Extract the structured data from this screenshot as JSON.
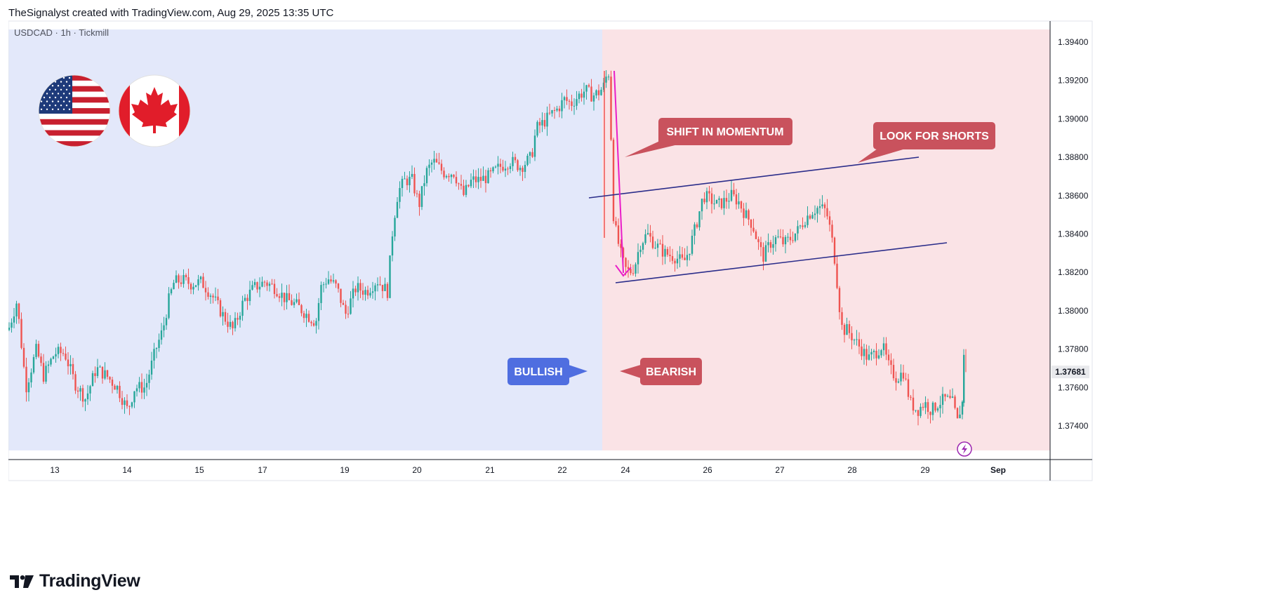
{
  "header": {
    "attribution": "TheSignalyst created with TradingView.com, Aug 29, 2025 13:35 UTC"
  },
  "symbol_label": "USDCAD · 1h · Tickmill",
  "footer": {
    "brand": "TradingView"
  },
  "colors": {
    "bullish_zone": "#e3e8fa",
    "bearish_zone": "#fae3e6",
    "candle_up": "#26a69a",
    "candle_down": "#ef5350",
    "channel_line": "#2b2d8a",
    "arrow": "#e91ec8",
    "label_bearish": "#c9525d",
    "label_bullish": "#4f6ee0"
  },
  "icons": [
    "us-flag-icon",
    "canada-flag-icon",
    "lightning-icon",
    "tradingview-logo-icon"
  ],
  "annotations": {
    "shift": "SHIFT IN MOMENTUM",
    "shorts": "LOOK FOR SHORTS",
    "bullish": "BULLISH",
    "bearish": "BEARISH"
  },
  "chart_data": {
    "type": "candlestick",
    "symbol": "USDCAD",
    "timeframe": "1h",
    "broker": "Tickmill",
    "ylim": [
      1.3728,
      1.3952
    ],
    "y_ticks": [
      "1.39400",
      "1.39200",
      "1.39000",
      "1.38800",
      "1.38600",
      "1.38400",
      "1.38200",
      "1.38000",
      "1.37800",
      "1.37600",
      "1.37400"
    ],
    "y_tick_values": [
      1.394,
      1.392,
      1.39,
      1.388,
      1.386,
      1.384,
      1.382,
      1.38,
      1.378,
      1.376,
      1.374
    ],
    "x_ticks": [
      "13",
      "14",
      "15",
      "17",
      "19",
      "20",
      "21",
      "22",
      "24",
      "26",
      "27",
      "28",
      "29",
      "Sep"
    ],
    "last_price": "1.37681",
    "last_price_value": 1.37681,
    "path": [
      [
        0,
        1.379
      ],
      [
        12,
        1.3805
      ],
      [
        25,
        1.376
      ],
      [
        40,
        1.378
      ],
      [
        50,
        1.3766
      ],
      [
        66,
        1.3778
      ],
      [
        80,
        1.3778
      ],
      [
        95,
        1.3762
      ],
      [
        110,
        1.3754
      ],
      [
        125,
        1.377
      ],
      [
        140,
        1.3766
      ],
      [
        155,
        1.376
      ],
      [
        170,
        1.3748
      ],
      [
        180,
        1.376
      ],
      [
        195,
        1.376
      ],
      [
        210,
        1.378
      ],
      [
        220,
        1.379
      ],
      [
        228,
        1.3805
      ],
      [
        236,
        1.3815
      ],
      [
        248,
        1.3816
      ],
      [
        260,
        1.3814
      ],
      [
        275,
        1.3815
      ],
      [
        290,
        1.3808
      ],
      [
        305,
        1.3798
      ],
      [
        320,
        1.379
      ],
      [
        335,
        1.3805
      ],
      [
        350,
        1.3812
      ],
      [
        365,
        1.3815
      ],
      [
        380,
        1.3812
      ],
      [
        395,
        1.3806
      ],
      [
        410,
        1.3803
      ],
      [
        425,
        1.3798
      ],
      [
        438,
        1.3794
      ],
      [
        445,
        1.3812
      ],
      [
        455,
        1.3817
      ],
      [
        468,
        1.3812
      ],
      [
        480,
        1.3798
      ],
      [
        495,
        1.3812
      ],
      [
        510,
        1.381
      ],
      [
        525,
        1.3816
      ],
      [
        540,
        1.381
      ],
      [
        548,
        1.3845
      ],
      [
        555,
        1.3862
      ],
      [
        565,
        1.3868
      ],
      [
        575,
        1.3868
      ],
      [
        585,
        1.3855
      ],
      [
        595,
        1.3872
      ],
      [
        605,
        1.3878
      ],
      [
        620,
        1.3872
      ],
      [
        635,
        1.3872
      ],
      [
        648,
        1.386
      ],
      [
        660,
        1.3868
      ],
      [
        670,
        1.3868
      ],
      [
        685,
        1.387
      ],
      [
        700,
        1.3875
      ],
      [
        715,
        1.3878
      ],
      [
        730,
        1.3875
      ],
      [
        745,
        1.388
      ],
      [
        752,
        1.3895
      ],
      [
        762,
        1.3898
      ],
      [
        772,
        1.3902
      ],
      [
        782,
        1.3905
      ],
      [
        792,
        1.391
      ],
      [
        802,
        1.3908
      ],
      [
        812,
        1.3912
      ],
      [
        822,
        1.3915
      ],
      [
        832,
        1.3912
      ],
      [
        842,
        1.3914
      ],
      [
        850,
        1.3918
      ],
      [
        856,
        1.392
      ],
      [
        862,
        1.385
      ],
      [
        866,
        1.384
      ],
      [
        872,
        1.383
      ],
      [
        878,
        1.3822
      ],
      [
        885,
        1.382
      ],
      [
        892,
        1.3823
      ],
      [
        900,
        1.3835
      ],
      [
        910,
        1.384
      ],
      [
        920,
        1.3835
      ],
      [
        935,
        1.383
      ],
      [
        950,
        1.3828
      ],
      [
        962,
        1.3825
      ],
      [
        970,
        1.3832
      ],
      [
        980,
        1.3845
      ],
      [
        990,
        1.386
      ],
      [
        1000,
        1.3858
      ],
      [
        1010,
        1.3855
      ],
      [
        1020,
        1.3857
      ],
      [
        1030,
        1.386
      ],
      [
        1040,
        1.3857
      ],
      [
        1050,
        1.385
      ],
      [
        1060,
        1.3845
      ],
      [
        1068,
        1.3835
      ],
      [
        1075,
        1.3828
      ],
      [
        1085,
        1.3835
      ],
      [
        1095,
        1.3838
      ],
      [
        1105,
        1.3835
      ],
      [
        1115,
        1.3838
      ],
      [
        1125,
        1.3842
      ],
      [
        1135,
        1.3848
      ],
      [
        1145,
        1.3852
      ],
      [
        1155,
        1.3854
      ],
      [
        1165,
        1.3852
      ],
      [
        1172,
        1.384
      ],
      [
        1178,
        1.3825
      ],
      [
        1183,
        1.3805
      ],
      [
        1188,
        1.379
      ],
      [
        1195,
        1.379
      ],
      [
        1205,
        1.3785
      ],
      [
        1215,
        1.378
      ],
      [
        1225,
        1.3775
      ],
      [
        1235,
        1.3778
      ],
      [
        1245,
        1.3782
      ],
      [
        1255,
        1.377
      ],
      [
        1265,
        1.3765
      ],
      [
        1275,
        1.3768
      ],
      [
        1285,
        1.3752
      ],
      [
        1295,
        1.3748
      ],
      [
        1305,
        1.3752
      ],
      [
        1315,
        1.3748
      ],
      [
        1325,
        1.3752
      ],
      [
        1335,
        1.3754
      ],
      [
        1345,
        1.3752
      ],
      [
        1352,
        1.3742
      ],
      [
        1358,
        1.3752
      ],
      [
        1365,
        1.3752
      ],
      [
        1370,
        1.3758
      ],
      [
        1374,
        1.3768
      ]
    ]
  }
}
